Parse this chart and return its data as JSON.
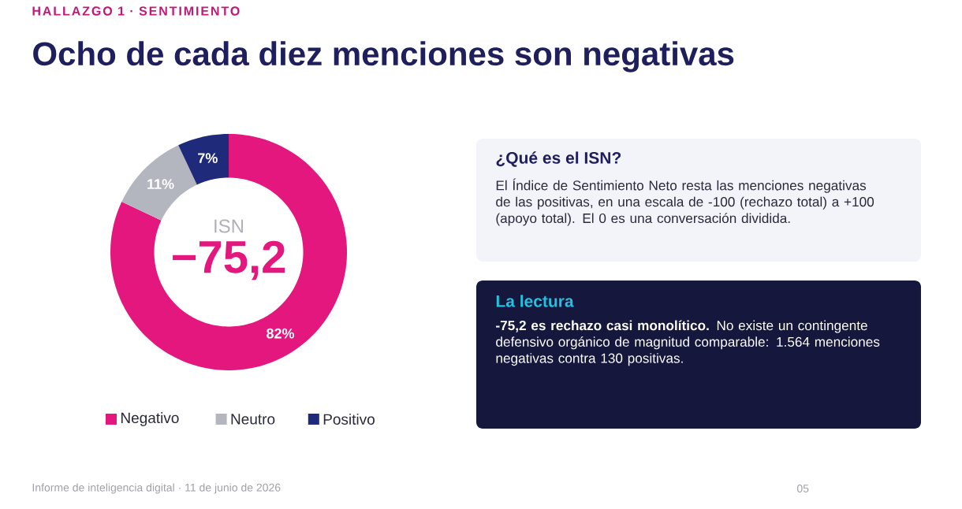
{
  "chart_data": [
    {
      "type": "donut",
      "title": "Ocho de cada diez menciones son negativas",
      "subtitle": "HALLAZGO 1 · SENTIMIENTO",
      "categories": [
        "Negativo",
        "Neutro",
        "Positivo"
      ],
      "values": [
        82,
        11,
        7
      ],
      "colors": [
        "#e3177d",
        "#b4b6bf",
        "#1f2a7a"
      ],
      "value_labels": [
        "82%",
        "11%",
        "7%"
      ],
      "legend": "bottom",
      "annotations": [
        "ISN",
        "−75,2",
        "Informe de inteligencia digital · 11 de junio de 2026",
        "05"
      ]
    },
    {
      "type": "other",
      "title": "¿Qué es el ISN?",
      "annotations": [
        "El Índice de Sentimiento Neto resta las menciones negativas de las positivas, en una escala de -100 (rechazo total) a +100 (apoyo total). El 0 es una conversación dividida."
      ]
    },
    {
      "type": "other",
      "title": "La lectura",
      "annotations": [
        "**-75,2 es rechazo casi monolítico.** No existe un contingente defensivo orgánico de magnitud comparable: 1.564 menciones negativas contra 130 positivas."
      ]
    }
  ]
}
